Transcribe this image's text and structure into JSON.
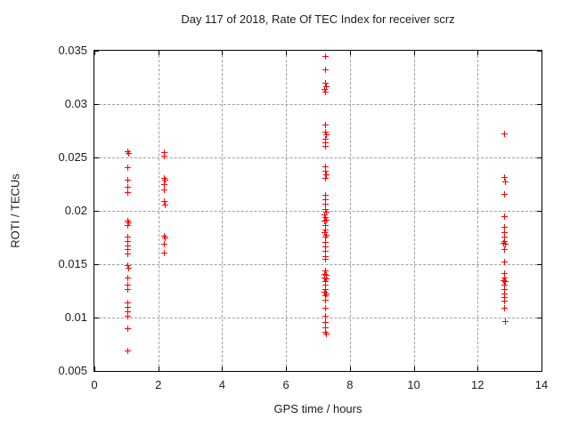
{
  "title": "Day 117 of 2018, Rate Of TEC Index for receiver scrz",
  "colors": {
    "marker": "#ff0000",
    "grid": "#9e9e9e",
    "frame": "#000000",
    "background": "#ffffff",
    "text": "#1c1c1c"
  },
  "chart_data": {
    "type": "scatter",
    "title": "Day 117 of 2018, Rate Of TEC Index for receiver scrz",
    "xlabel": "GPS time / hours",
    "ylabel": "ROTI / TECUs",
    "xlim": [
      0,
      14
    ],
    "ylim": [
      0.005,
      0.035
    ],
    "xticks": [
      0,
      2,
      4,
      6,
      8,
      10,
      12,
      14
    ],
    "xtick_labels": [
      "0",
      "2",
      "4",
      "6",
      "8",
      "10",
      "12",
      "14"
    ],
    "yticks": [
      0.005,
      0.01,
      0.015,
      0.02,
      0.025,
      0.03,
      0.035
    ],
    "ytick_labels": [
      "0.005",
      "0.01",
      "0.015",
      "0.02",
      "0.025",
      "0.03",
      "0.035"
    ],
    "grid": true,
    "legend_position": "none",
    "marker_style": "plus",
    "series": [
      {
        "name": "ROTI",
        "color": "#ff0000",
        "points": [
          [
            1.06,
            0.0255
          ],
          [
            1.1,
            0.0253
          ],
          [
            1.06,
            0.024
          ],
          [
            1.06,
            0.0228
          ],
          [
            1.06,
            0.0222
          ],
          [
            1.06,
            0.0217
          ],
          [
            1.06,
            0.019
          ],
          [
            1.1,
            0.0188
          ],
          [
            1.06,
            0.0186
          ],
          [
            1.06,
            0.0175
          ],
          [
            1.06,
            0.0171
          ],
          [
            1.06,
            0.0167
          ],
          [
            1.06,
            0.0163
          ],
          [
            1.06,
            0.0159
          ],
          [
            1.06,
            0.0148
          ],
          [
            1.1,
            0.0146
          ],
          [
            1.06,
            0.0137
          ],
          [
            1.06,
            0.013
          ],
          [
            1.06,
            0.0126
          ],
          [
            1.06,
            0.0113
          ],
          [
            1.06,
            0.0109
          ],
          [
            1.06,
            0.0105
          ],
          [
            1.06,
            0.0101
          ],
          [
            1.06,
            0.0089
          ],
          [
            1.06,
            0.0068
          ],
          [
            2.19,
            0.0254
          ],
          [
            2.19,
            0.0251
          ],
          [
            2.19,
            0.023
          ],
          [
            2.22,
            0.0228
          ],
          [
            2.19,
            0.0224
          ],
          [
            2.19,
            0.0219
          ],
          [
            2.19,
            0.0208
          ],
          [
            2.22,
            0.0205
          ],
          [
            2.19,
            0.0176
          ],
          [
            2.22,
            0.0174
          ],
          [
            2.19,
            0.0168
          ],
          [
            2.19,
            0.016
          ],
          [
            7.25,
            0.0344
          ],
          [
            7.25,
            0.0332
          ],
          [
            7.25,
            0.0319
          ],
          [
            7.28,
            0.0316
          ],
          [
            7.22,
            0.0313
          ],
          [
            7.25,
            0.0311
          ],
          [
            7.25,
            0.028
          ],
          [
            7.25,
            0.0273
          ],
          [
            7.28,
            0.0271
          ],
          [
            7.25,
            0.0267
          ],
          [
            7.25,
            0.0263
          ],
          [
            7.25,
            0.026
          ],
          [
            7.25,
            0.0241
          ],
          [
            7.25,
            0.0237
          ],
          [
            7.28,
            0.0233
          ],
          [
            7.25,
            0.023
          ],
          [
            7.25,
            0.0214
          ],
          [
            7.25,
            0.021
          ],
          [
            7.25,
            0.0206
          ],
          [
            7.25,
            0.0201
          ],
          [
            7.28,
            0.0198
          ],
          [
            7.22,
            0.0196
          ],
          [
            7.25,
            0.0193
          ],
          [
            7.28,
            0.0191
          ],
          [
            7.22,
            0.019
          ],
          [
            7.25,
            0.0186
          ],
          [
            7.25,
            0.0182
          ],
          [
            7.22,
            0.0179
          ],
          [
            7.28,
            0.0177
          ],
          [
            7.25,
            0.0175
          ],
          [
            7.25,
            0.017
          ],
          [
            7.25,
            0.0166
          ],
          [
            7.25,
            0.0162
          ],
          [
            7.25,
            0.0157
          ],
          [
            7.25,
            0.0154
          ],
          [
            7.25,
            0.0143
          ],
          [
            7.22,
            0.014
          ],
          [
            7.28,
            0.0139
          ],
          [
            7.22,
            0.0137
          ],
          [
            7.28,
            0.0136
          ],
          [
            7.25,
            0.0133
          ],
          [
            7.25,
            0.013
          ],
          [
            7.25,
            0.0126
          ],
          [
            7.22,
            0.0123
          ],
          [
            7.28,
            0.0122
          ],
          [
            7.25,
            0.012
          ],
          [
            7.25,
            0.0116
          ],
          [
            7.25,
            0.0108
          ],
          [
            7.25,
            0.0101
          ],
          [
            7.25,
            0.0095
          ],
          [
            7.25,
            0.009
          ],
          [
            7.25,
            0.0086
          ],
          [
            7.28,
            0.0084
          ],
          [
            12.85,
            0.0272
          ],
          [
            12.85,
            0.0231
          ],
          [
            12.88,
            0.0227
          ],
          [
            12.85,
            0.0215
          ],
          [
            12.85,
            0.0194
          ],
          [
            12.85,
            0.0184
          ],
          [
            12.85,
            0.0179
          ],
          [
            12.85,
            0.0175
          ],
          [
            12.85,
            0.0171
          ],
          [
            12.82,
            0.0169
          ],
          [
            12.88,
            0.0168
          ],
          [
            12.85,
            0.0163
          ],
          [
            12.85,
            0.0152
          ],
          [
            12.85,
            0.0141
          ],
          [
            12.85,
            0.0137
          ],
          [
            12.82,
            0.0134
          ],
          [
            12.88,
            0.0133
          ],
          [
            12.85,
            0.013
          ],
          [
            12.85,
            0.0126
          ],
          [
            12.85,
            0.0122
          ],
          [
            12.85,
            0.0118
          ],
          [
            12.85,
            0.0115
          ],
          [
            12.85,
            0.0108
          ],
          [
            12.88,
            0.0096
          ]
        ]
      }
    ]
  }
}
